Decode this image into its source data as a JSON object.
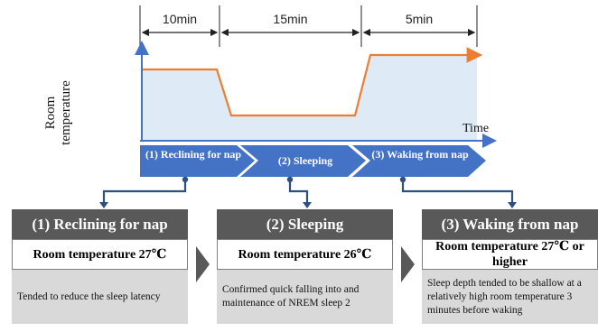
{
  "durations": [
    "10min",
    "15min",
    "5min"
  ],
  "axes": {
    "y_label": "Room temperature",
    "x_label": "Time"
  },
  "phases": [
    {
      "label": "(1) Reclining for nap"
    },
    {
      "label": "(2) Sleeping"
    },
    {
      "label": "(3) Waking from nap"
    }
  ],
  "cards": [
    {
      "title": "(1) Reclining for nap",
      "temperature": "Room temperature 27℃",
      "description": "Tended to reduce the sleep latency"
    },
    {
      "title": "(2) Sleeping",
      "temperature": "Room temperature 26℃",
      "description": "Confirmed quick falling into and maintenance of NREM sleep 2"
    },
    {
      "title": "(3) Waking from nap",
      "temperature": "Room temperature 27℃ or higher",
      "description": "Sleep depth tended to be shallow at a relatively high room temperature 3 minutes before waking"
    }
  ],
  "colors": {
    "line": "#ed7d31",
    "area": "#deebf7",
    "axis": "#4472c4",
    "phase_band": "#4472c4",
    "card_header": "#595959",
    "card_body": "#d9d9d9",
    "connector": "#2f4f7f"
  },
  "temperature_profile": {
    "levels_relative": {
      "reclining": "high",
      "sleeping": "low",
      "waking": "higher"
    },
    "phase_minutes": [
      10,
      15,
      5
    ]
  }
}
